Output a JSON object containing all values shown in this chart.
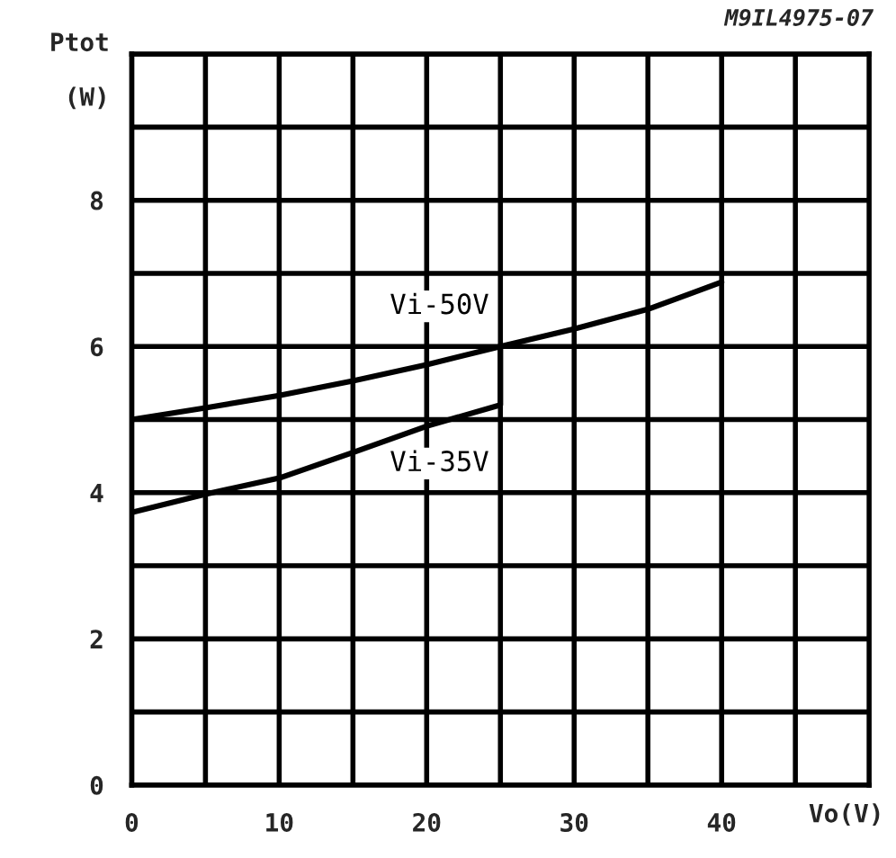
{
  "chart_data": {
    "type": "line",
    "xlabel": "Vo(V)",
    "ylabel": "Ptot\n(W)",
    "annotations": [
      "M9IL4975-07"
    ],
    "xlim": [
      0,
      50
    ],
    "ylim": [
      0,
      10
    ],
    "xticks": [
      0,
      {
        "value": 5,
        "label": null
      },
      10,
      {
        "value": 15,
        "label": null
      },
      20,
      {
        "value": 25,
        "label": null
      },
      30,
      {
        "value": 35,
        "label": null
      },
      40,
      {
        "value": 45,
        "label": null
      }
    ],
    "yticks": [
      0,
      {
        "value": 1,
        "label": null
      },
      2,
      {
        "value": 3,
        "label": null
      },
      4,
      {
        "value": 5,
        "label": null
      },
      6,
      {
        "value": 7,
        "label": null
      },
      8,
      {
        "value": 9,
        "label": null
      }
    ],
    "grid": true,
    "legend": false,
    "marker": "none",
    "line_style": "solid",
    "series": [
      {
        "name": "Vi-50V",
        "color": "#000000",
        "x": [
          0,
          5,
          10,
          15,
          20,
          25,
          30,
          35,
          40
        ],
        "values": [
          5.0,
          5.16,
          5.33,
          5.53,
          5.75,
          6.0,
          6.24,
          6.51,
          6.88
        ]
      },
      {
        "name": "Vi-35V",
        "color": "#000000",
        "x": [
          0,
          5,
          10,
          15,
          20,
          25,
          25
        ],
        "values": [
          3.73,
          3.98,
          4.2,
          4.55,
          4.91,
          5.2,
          6.0
        ]
      }
    ]
  }
}
